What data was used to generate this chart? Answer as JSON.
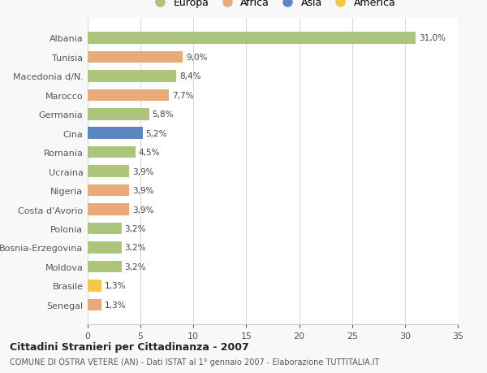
{
  "countries": [
    "Albania",
    "Tunisia",
    "Macedonia d/N.",
    "Marocco",
    "Germania",
    "Cina",
    "Romania",
    "Ucraina",
    "Nigeria",
    "Costa d'Avorio",
    "Polonia",
    "Bosnia-Erzegovina",
    "Moldova",
    "Brasile",
    "Senegal"
  ],
  "values": [
    31.0,
    9.0,
    8.4,
    7.7,
    5.8,
    5.2,
    4.5,
    3.9,
    3.9,
    3.9,
    3.2,
    3.2,
    3.2,
    1.3,
    1.3
  ],
  "labels": [
    "31,0%",
    "9,0%",
    "8,4%",
    "7,7%",
    "5,8%",
    "5,2%",
    "4,5%",
    "3,9%",
    "3,9%",
    "3,9%",
    "3,2%",
    "3,2%",
    "3,2%",
    "1,3%",
    "1,3%"
  ],
  "continents": [
    "Europa",
    "Africa",
    "Europa",
    "Africa",
    "Europa",
    "Asia",
    "Europa",
    "Europa",
    "Africa",
    "Africa",
    "Europa",
    "Europa",
    "Europa",
    "America",
    "Africa"
  ],
  "colors": {
    "Europa": "#adc47d",
    "Africa": "#e8aa78",
    "Asia": "#5b86c0",
    "America": "#f0c84a"
  },
  "legend_order": [
    "Europa",
    "Africa",
    "Asia",
    "America"
  ],
  "title": "Cittadini Stranieri per Cittadinanza - 2007",
  "subtitle": "COMUNE DI OSTRA VETERE (AN) - Dati ISTAT al 1° gennaio 2007 - Elaborazione TUTTITALIA.IT",
  "xlim": [
    0,
    35
  ],
  "xticks": [
    0,
    5,
    10,
    15,
    20,
    25,
    30,
    35
  ],
  "bg_color": "#f8f8f8",
  "plot_bg_color": "#ffffff",
  "grid_color": "#d8d8d8"
}
